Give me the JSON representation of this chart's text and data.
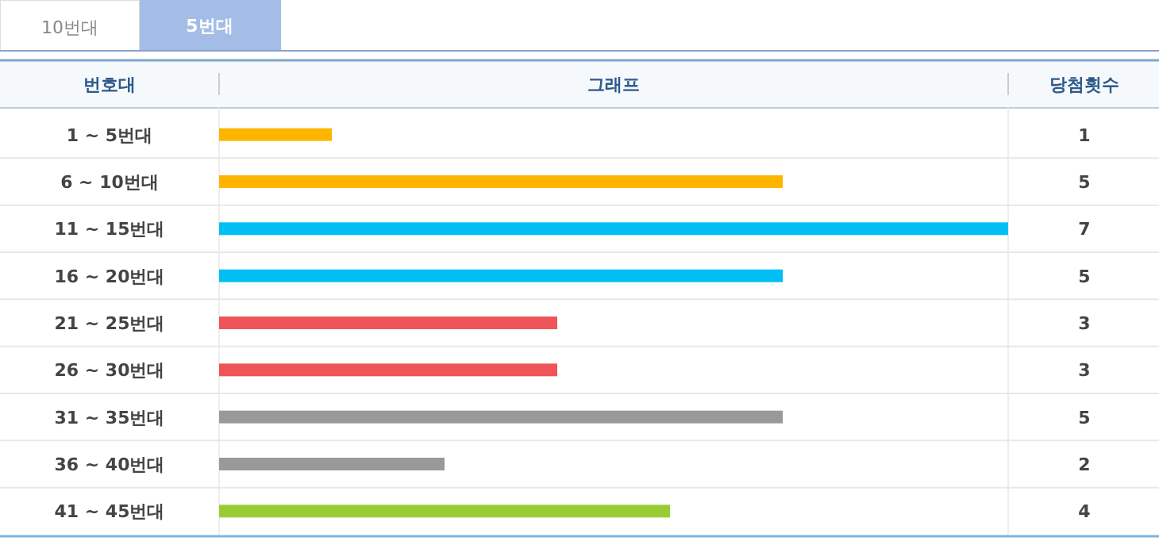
{
  "chart_data": {
    "type": "bar",
    "orientation": "horizontal",
    "ylabel": "번호대",
    "xlabel": "그래프",
    "annotations": [
      "10번대",
      "5번대",
      "당첨횟수"
    ],
    "categories": [
      "1 ~ 5번대",
      "6 ~ 10번대",
      "11 ~ 15번대",
      "16 ~ 20번대",
      "21 ~ 25번대",
      "26 ~ 30번대",
      "31 ~ 35번대",
      "36 ~ 40번대",
      "41 ~ 45번대"
    ],
    "values": [
      1,
      5,
      7,
      5,
      3,
      3,
      5,
      2,
      4
    ],
    "colors": [
      "#ffb400",
      "#ffb400",
      "#00bff3",
      "#00bff3",
      "#ef5459",
      "#ef5459",
      "#999999",
      "#999999",
      "#99cc33"
    ],
    "data_labels": true
  }
}
